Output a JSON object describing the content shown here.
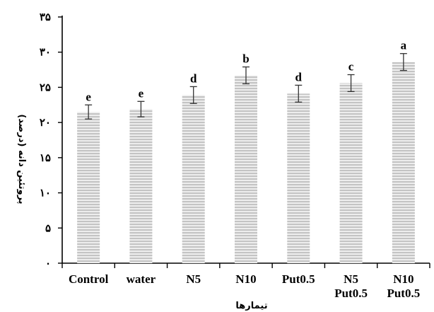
{
  "chart_data": {
    "type": "bar",
    "categories": [
      [
        "Control"
      ],
      [
        "water"
      ],
      [
        "N5"
      ],
      [
        "N10"
      ],
      [
        "Put0.5"
      ],
      [
        "N5",
        "Put0.5"
      ],
      [
        "N10",
        "Put0.5"
      ]
    ],
    "values": [
      21.5,
      21.9,
      23.9,
      26.7,
      24.1,
      25.6,
      28.6
    ],
    "errors": [
      1.0,
      1.1,
      1.2,
      1.2,
      1.2,
      1.2,
      1.2
    ],
    "significance": [
      "e",
      "e",
      "d",
      "b",
      "d",
      "c",
      "a"
    ],
    "title": "",
    "xlabel": "تیمارها",
    "ylabel": "پروتئین دانه (درصد)",
    "ylim": [
      0,
      35
    ],
    "yticks": [
      0,
      5,
      10,
      15,
      20,
      25,
      30,
      35
    ],
    "ytick_labels": [
      "۰",
      "۵",
      "۱۰",
      "۱۵",
      "۲۰",
      "۲۵",
      "۳۰",
      "۳۵"
    ],
    "grid": false,
    "legend": "none",
    "bar_fill": "#bdbdbd",
    "bar_stripe": "#ffffff",
    "axis_color": "#000000"
  }
}
